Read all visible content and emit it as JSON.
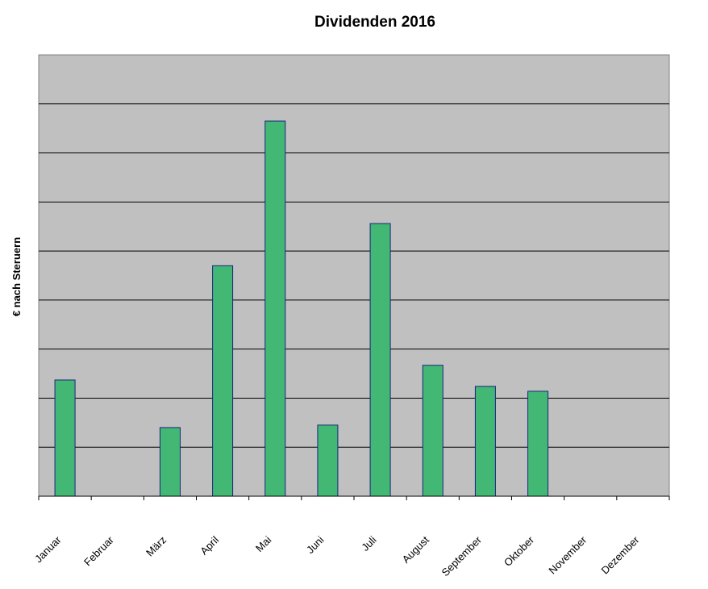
{
  "chart_data": {
    "type": "bar",
    "title": "Dividenden 2016",
    "xlabel": "",
    "ylabel": "€ nach Steruern",
    "categories": [
      "Januar",
      "Februar",
      "März",
      "April",
      "Mai",
      "Juni",
      "Juli",
      "August",
      "September",
      "Oktober",
      "November",
      "Dezember"
    ],
    "values": [
      2.37,
      0,
      1.4,
      4.7,
      7.65,
      1.45,
      5.56,
      2.67,
      2.24,
      2.14,
      0,
      0
    ],
    "ylim": [
      0,
      9
    ],
    "grid": true,
    "colors": {
      "plot_background": "#c0c0c0",
      "bar_fill": "#42b874",
      "bar_stroke": "#1a237e",
      "gridline": "#000000"
    }
  }
}
